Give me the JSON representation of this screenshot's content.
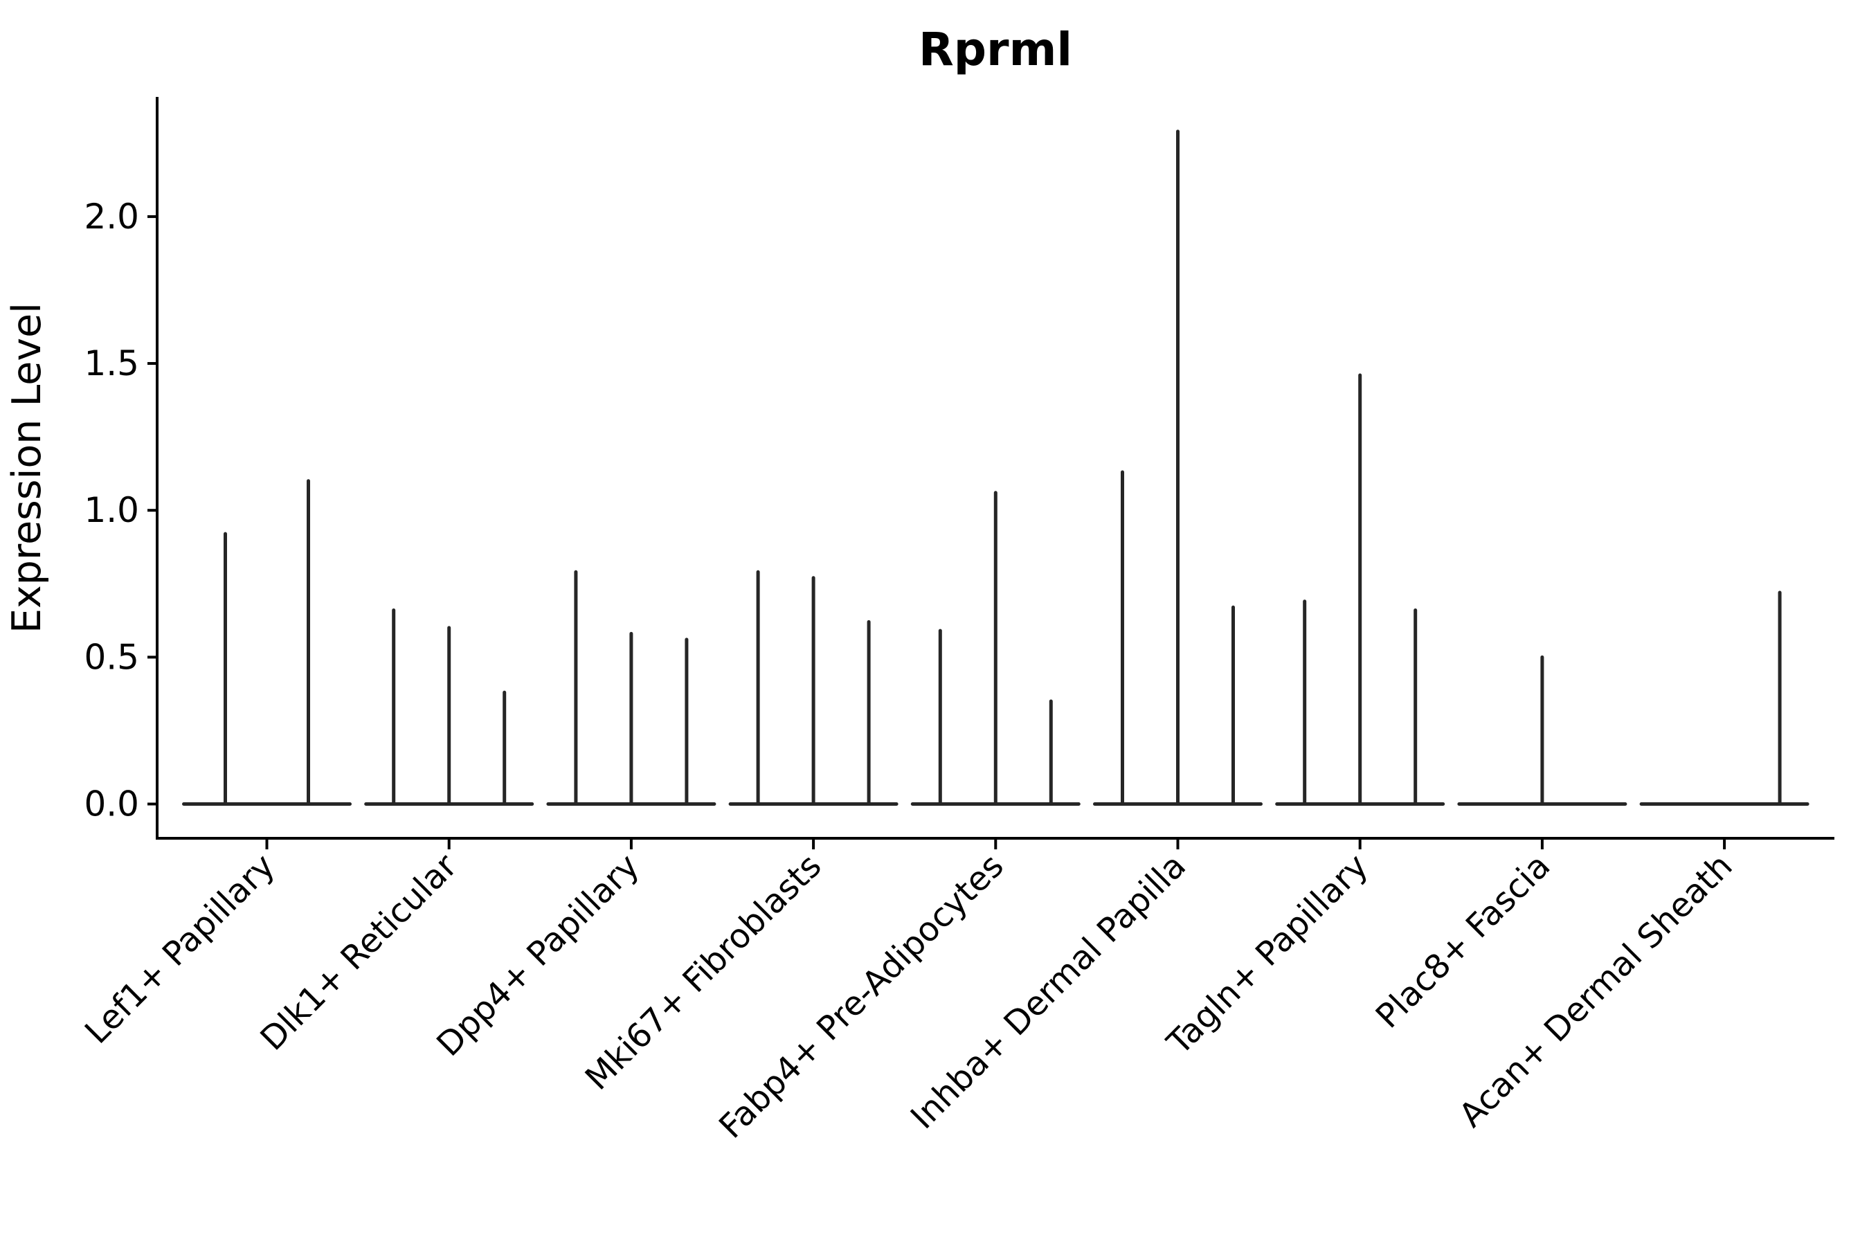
{
  "title": "Rprml",
  "axes": {
    "ylabel": "Expression Level",
    "xlabel": ""
  },
  "chart_data": {
    "type": "violin",
    "title": "Rprml",
    "ylabel": "Expression Level",
    "xlabel": "",
    "grid": false,
    "legend_position": "none",
    "ylim": [
      -0.117,
      2.414
    ],
    "yticks": [
      0.0,
      0.5,
      1.0,
      1.5,
      2.0
    ],
    "ytick_labels": [
      "0.0",
      "0.5",
      "1.0",
      "1.5",
      "2.0"
    ],
    "categories": [
      "Lef1+ Papillary",
      "Dlk1+ Reticular",
      "Dpp4+ Papillary",
      "Mki67+ Fibroblasts",
      "Fabp4+ Pre-Adipocytes",
      "Inhba+ Dermal Papilla",
      "Tagln+ Papillary",
      "Plac8+ Fascia",
      "Acan+ Dermal Sheath"
    ],
    "groups": [
      {
        "label": "Lef1+ Papillary",
        "violin_max_values": [
          0.92,
          1.1
        ]
      },
      {
        "label": "Dlk1+ Reticular",
        "violin_max_values": [
          0.66,
          0.6,
          0.38
        ]
      },
      {
        "label": "Dpp4+ Papillary",
        "violin_max_values": [
          0.79,
          0.58,
          0.56
        ]
      },
      {
        "label": "Mki67+ Fibroblasts",
        "violin_max_values": [
          0.79,
          0.77,
          0.62
        ]
      },
      {
        "label": "Fabp4+ Pre-Adipocytes",
        "violin_max_values": [
          0.59,
          1.06,
          0.35
        ]
      },
      {
        "label": "Inhba+ Dermal Papilla",
        "violin_max_values": [
          1.13,
          2.29,
          0.67
        ]
      },
      {
        "label": "Tagln+ Papillary",
        "violin_max_values": [
          0.69,
          1.46,
          0.66
        ]
      },
      {
        "label": "Plac8+ Fascia",
        "violin_max_values": [
          0.0,
          0.5,
          0.0
        ]
      },
      {
        "label": "Acan+ Dermal Sheath",
        "violin_max_values": [
          0.0,
          0.0,
          0.72
        ]
      }
    ],
    "violin_color": "#262626",
    "axis_color": "#000000"
  }
}
